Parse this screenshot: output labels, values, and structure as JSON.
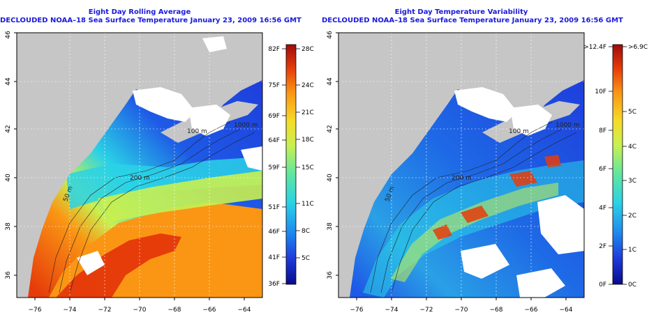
{
  "panels": [
    {
      "title": "Eight Day Rolling Average",
      "subtitle": "DECLOUDED NOAA–18 Sea Surface Temperature January 23, 2009 16:56 GMT",
      "x_ticks": [
        "−76",
        "−74",
        "−72",
        "−70",
        "−68",
        "−66",
        "−64"
      ],
      "y_ticks": [
        "36",
        "38",
        "40",
        "42",
        "44",
        "46"
      ],
      "contour_labels": [
        "100 m",
        "200 m",
        "1000 m",
        "50 m"
      ],
      "colorbar": {
        "left_labels": [
          "82F",
          "75F",
          "69F",
          "64F",
          "59F",
          "51F",
          "46F",
          "41F",
          "36F"
        ],
        "right_labels": [
          "28C",
          "24C",
          "21C",
          "18C",
          "15C",
          "11C",
          "8C",
          "5C"
        ]
      }
    },
    {
      "title": "Eight Day Temperature Variability",
      "subtitle": "DECLOUDED NOAA–18 Sea Surface Temperature January 23, 2009 16:56 GMT",
      "x_ticks": [
        "−76",
        "−74",
        "−72",
        "−70",
        "−68",
        "−66",
        "−64"
      ],
      "y_ticks": [
        "36",
        "38",
        "40",
        "42",
        "44",
        "46"
      ],
      "contour_labels": [
        "100 m",
        "200 m",
        "1000 m",
        "50 m"
      ],
      "colorbar": {
        "left_labels": [
          ">12.4F",
          "10F",
          "8F",
          "6F",
          "4F",
          "2F",
          "0F"
        ],
        "right_labels": [
          ">6.9C",
          "5C",
          "4C",
          "3C",
          "2C",
          "1C",
          "0C"
        ]
      }
    }
  ],
  "colors": {
    "title": "#1a1adc",
    "land": "#c6c6c6",
    "cloud": "#ffffff",
    "colorbar": [
      "#0a0a8c",
      "#1e3cdc",
      "#1e8cf0",
      "#2ad2e6",
      "#5fe6a0",
      "#c8f050",
      "#f5dc28",
      "#fa9614",
      "#e63c0a",
      "#a00a0a"
    ]
  }
}
